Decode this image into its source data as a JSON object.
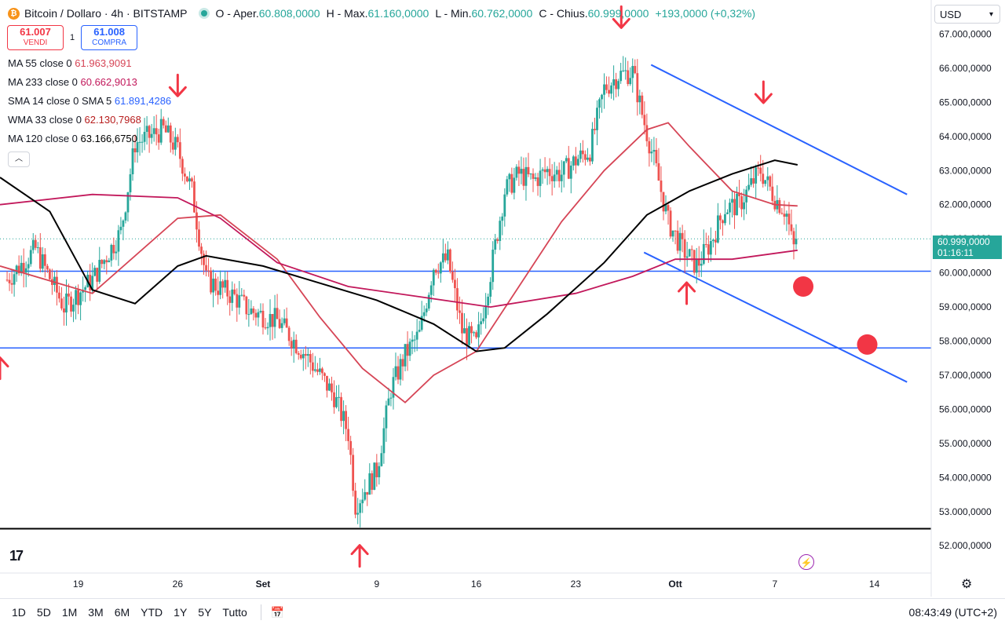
{
  "header": {
    "symbol": "Bitcoin / Dollaro · 4h · BITSTAMP",
    "coin_letter": "₿",
    "ohlc": [
      {
        "label": "O - Aper.",
        "value": "60.808,0000"
      },
      {
        "label": "H - Max.",
        "value": "61.160,0000"
      },
      {
        "label": "L - Min.",
        "value": "60.762,0000"
      },
      {
        "label": "C - Chius.",
        "value": "60.999,0000"
      }
    ],
    "change": "+193,0000 (+0,32%)"
  },
  "trade": {
    "sell_price": "61.007",
    "sell_label": "VENDI",
    "spread": "1",
    "buy_price": "61.008",
    "buy_label": "COMPRA"
  },
  "indicators": [
    {
      "name": "MA 55 close 0",
      "value": "61.963,9091",
      "color": "#d64556"
    },
    {
      "name": "MA 233 close 0",
      "value": "60.662,9013",
      "color": "#c2185b"
    },
    {
      "name": "SMA 14 close 0 SMA 5",
      "value": "61.891,4286",
      "color": "#2962ff"
    },
    {
      "name": "WMA 33 close 0",
      "value": "62.130,7968",
      "color": "#b71c1c"
    },
    {
      "name": "MA 120 close 0",
      "value": "63.166,6750",
      "color": "#000000"
    }
  ],
  "currency": "USD",
  "last_price": "60.999,0000",
  "countdown": "01:16:11",
  "timeframes": [
    "1D",
    "5D",
    "1M",
    "3M",
    "6M",
    "YTD",
    "1Y",
    "5Y",
    "Tutto"
  ],
  "clock": "08:43:49 (UTC+2)",
  "chart_data": {
    "type": "candlestick",
    "y_axis_ticks": [
      "52.000,0000",
      "53.000,0000",
      "54.000,0000",
      "55.000,0000",
      "56.000,0000",
      "57.000,0000",
      "58.000,0000",
      "59.000,0000",
      "60.000,0000",
      "61.000,0000",
      "62.000,0000",
      "63.000,0000",
      "64.000,0000",
      "65.000,0000",
      "66.000,0000",
      "67.000,0000"
    ],
    "y_tick_values": [
      52000,
      53000,
      54000,
      55000,
      56000,
      57000,
      58000,
      59000,
      60000,
      61000,
      62000,
      63000,
      64000,
      65000,
      66000,
      67000
    ],
    "x_axis_ticks": [
      "19",
      "26",
      "Set",
      "9",
      "16",
      "23",
      "Ott",
      "7",
      "14"
    ],
    "x_tick_days": [
      19,
      26,
      32,
      40,
      47,
      54,
      61,
      68,
      75
    ],
    "x_domain_days": [
      13.5,
      79.0
    ],
    "y_domain": [
      51200,
      68000
    ],
    "last_close": 60999,
    "close_anchors": [
      [
        14,
        59800
      ],
      [
        16,
        60700
      ],
      [
        18,
        59000
      ],
      [
        20,
        59800
      ],
      [
        22,
        61200
      ],
      [
        23,
        63800
      ],
      [
        25,
        64200
      ],
      [
        26,
        63600
      ],
      [
        27,
        62400
      ],
      [
        28,
        59800
      ],
      [
        30,
        59300
      ],
      [
        31,
        58900
      ],
      [
        33,
        58600
      ],
      [
        35,
        57600
      ],
      [
        37,
        56400
      ],
      [
        38,
        55300
      ],
      [
        38.5,
        53200
      ],
      [
        40,
        54200
      ],
      [
        41,
        56600
      ],
      [
        42,
        57600
      ],
      [
        43,
        58200
      ],
      [
        44,
        60200
      ],
      [
        45,
        60400
      ],
      [
        46,
        58300
      ],
      [
        47,
        57900
      ],
      [
        48,
        60000
      ],
      [
        49,
        62400
      ],
      [
        50,
        62900
      ],
      [
        51,
        62700
      ],
      [
        52,
        63000
      ],
      [
        53,
        62900
      ],
      [
        54,
        63300
      ],
      [
        55,
        63600
      ],
      [
        56,
        65400
      ],
      [
        57,
        65800
      ],
      [
        58,
        65900
      ],
      [
        58.7,
        64600
      ],
      [
        59.5,
        63300
      ],
      [
        60.5,
        61500
      ],
      [
        61.5,
        60700
      ],
      [
        62.5,
        60200
      ],
      [
        63.5,
        60900
      ],
      [
        64.5,
        61900
      ],
      [
        65.5,
        62000
      ],
      [
        66.5,
        62700
      ],
      [
        67,
        63000
      ],
      [
        68,
        62200
      ],
      [
        68.8,
        61800
      ],
      [
        69.3,
        60700
      ],
      [
        69.6,
        60999
      ]
    ],
    "support_lines": [
      57800,
      60050,
      52500
    ],
    "channel_upper": [
      [
        59.3,
        66100
      ],
      [
        77.3,
        62300
      ]
    ],
    "channel_lower": [
      [
        58.8,
        60600
      ],
      [
        77.3,
        56800
      ]
    ],
    "ma_series": [
      {
        "name": "MA 55",
        "color": "#d64556",
        "points": [
          [
            13.5,
            60200
          ],
          [
            20,
            59400
          ],
          [
            26,
            61600
          ],
          [
            29,
            61700
          ],
          [
            33,
            60400
          ],
          [
            36,
            58700
          ],
          [
            39,
            57200
          ],
          [
            42,
            56200
          ],
          [
            44,
            57000
          ],
          [
            47,
            57700
          ],
          [
            50,
            59600
          ],
          [
            53,
            61500
          ],
          [
            56,
            63000
          ],
          [
            59,
            64200
          ],
          [
            60.5,
            64400
          ],
          [
            62,
            63700
          ],
          [
            65,
            62400
          ],
          [
            68,
            62000
          ],
          [
            69.6,
            61963
          ]
        ]
      },
      {
        "name": "MA 233",
        "color": "#c2185b",
        "points": [
          [
            13.5,
            62000
          ],
          [
            20,
            62300
          ],
          [
            26,
            62200
          ],
          [
            29,
            61600
          ],
          [
            33,
            60300
          ],
          [
            38,
            59600
          ],
          [
            43,
            59300
          ],
          [
            48,
            59000
          ],
          [
            54,
            59400
          ],
          [
            58,
            59900
          ],
          [
            61,
            60400
          ],
          [
            65,
            60400
          ],
          [
            69.6,
            60663
          ]
        ]
      },
      {
        "name": "MA 120",
        "color": "#000000",
        "points": [
          [
            13.5,
            62800
          ],
          [
            17,
            61800
          ],
          [
            20,
            59500
          ],
          [
            23,
            59100
          ],
          [
            26,
            60200
          ],
          [
            28,
            60500
          ],
          [
            32,
            60200
          ],
          [
            36,
            59700
          ],
          [
            40,
            59200
          ],
          [
            44,
            58500
          ],
          [
            47,
            57700
          ],
          [
            49,
            57800
          ],
          [
            52,
            58800
          ],
          [
            56,
            60300
          ],
          [
            59,
            61700
          ],
          [
            62,
            62400
          ],
          [
            65,
            62900
          ],
          [
            68,
            63300
          ],
          [
            69.6,
            63167
          ]
        ]
      }
    ]
  }
}
